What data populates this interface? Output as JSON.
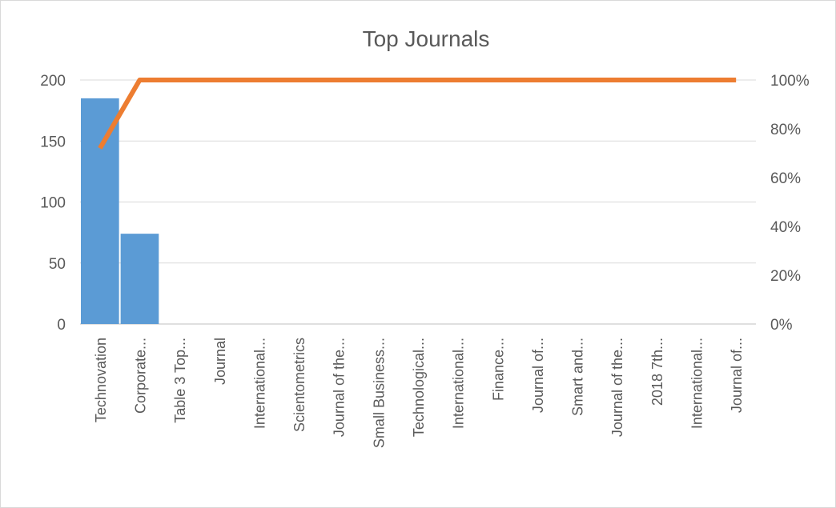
{
  "chart_data": {
    "type": "bar",
    "title": "Top Journals",
    "categories": [
      "Technovation",
      "Corporate...",
      "Table 3 Top...",
      "Journal",
      "International...",
      "Scientometrics",
      "Journal of the...",
      "Small Business...",
      "Technological...",
      "International...",
      "Finance...",
      "Journal of...",
      "Smart and...",
      "Journal of the...",
      "2018 7th...",
      "International...",
      "Journal of..."
    ],
    "series": [
      {
        "type": "bar",
        "axis": "left",
        "color": "#5b9bd5",
        "values": [
          185,
          74,
          0,
          0,
          0,
          0,
          0,
          0,
          0,
          0,
          0,
          0,
          0,
          0,
          0,
          0,
          0
        ]
      },
      {
        "type": "line",
        "axis": "right",
        "color": "#ed7d31",
        "values": [
          72,
          100,
          100,
          100,
          100,
          100,
          100,
          100,
          100,
          100,
          100,
          100,
          100,
          100,
          100,
          100,
          100
        ]
      }
    ],
    "y_left": {
      "min": 0,
      "max": 200,
      "ticks": [
        "0",
        "50",
        "100",
        "150",
        "200"
      ]
    },
    "y_right": {
      "min": 0,
      "max": 100,
      "ticks": [
        "0%",
        "20%",
        "40%",
        "60%",
        "80%",
        "100%"
      ]
    },
    "grid": true,
    "legend": "none"
  }
}
